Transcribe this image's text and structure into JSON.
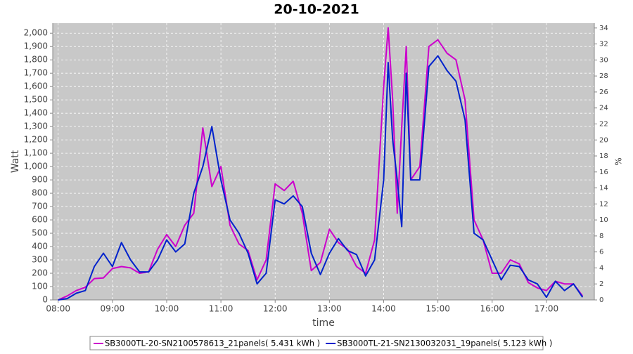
{
  "chart_data": {
    "type": "line",
    "title": "20-10-2021",
    "x_label": "time",
    "y_label": "Watt",
    "y2_label": "%",
    "x": [
      "08:00",
      "08:10",
      "08:20",
      "08:30",
      "08:40",
      "08:50",
      "09:00",
      "09:10",
      "09:20",
      "09:30",
      "09:40",
      "09:50",
      "10:00",
      "10:10",
      "10:20",
      "10:30",
      "10:40",
      "10:50",
      "11:00",
      "11:10",
      "11:20",
      "11:30",
      "11:40",
      "11:50",
      "12:00",
      "12:10",
      "12:20",
      "12:30",
      "12:40",
      "12:50",
      "13:00",
      "13:10",
      "13:20",
      "13:30",
      "13:40",
      "13:50",
      "14:00",
      "14:05",
      "14:10",
      "14:15",
      "14:20",
      "14:25",
      "14:30",
      "14:40",
      "14:50",
      "15:00",
      "15:10",
      "15:20",
      "15:30",
      "15:40",
      "15:50",
      "16:00",
      "16:10",
      "16:20",
      "16:30",
      "16:40",
      "16:50",
      "17:00",
      "17:10",
      "17:20",
      "17:30",
      "17:40"
    ],
    "series": [
      {
        "name": "SB3000TL-20-SN2100578613_21panels( 5.431 kWh )",
        "color": "#cc00cc",
        "values": [
          0,
          30,
          70,
          95,
          160,
          165,
          235,
          250,
          240,
          200,
          210,
          380,
          490,
          400,
          560,
          650,
          1290,
          850,
          1000,
          560,
          420,
          370,
          150,
          300,
          870,
          820,
          890,
          650,
          220,
          280,
          530,
          430,
          380,
          250,
          200,
          450,
          1600,
          2040,
          1500,
          650,
          1300,
          1900,
          900,
          1000,
          1900,
          1950,
          1850,
          1800,
          1500,
          600,
          450,
          200,
          200,
          300,
          270,
          130,
          90,
          70,
          140,
          120,
          120,
          30
        ]
      },
      {
        "name": "SB3000TL-21-SN2130032031_19panels( 5.123 kWh )",
        "color": "#0022cc",
        "values": [
          0,
          10,
          50,
          70,
          250,
          350,
          250,
          430,
          300,
          210,
          210,
          300,
          450,
          360,
          420,
          800,
          1000,
          1300,
          900,
          600,
          500,
          350,
          120,
          200,
          750,
          720,
          780,
          700,
          350,
          190,
          350,
          460,
          370,
          340,
          180,
          300,
          900,
          1780,
          1200,
          900,
          550,
          1700,
          900,
          900,
          1750,
          1830,
          1720,
          1640,
          1350,
          500,
          450,
          300,
          150,
          260,
          250,
          150,
          120,
          20,
          140,
          70,
          120,
          20
        ]
      }
    ],
    "xlim": [
      "07:54",
      "17:53"
    ],
    "xticks": [
      "08:00",
      "09:00",
      "10:00",
      "11:00",
      "12:00",
      "13:00",
      "14:00",
      "15:00",
      "16:00",
      "17:00"
    ],
    "ylim": [
      0,
      2075
    ],
    "yticks": [
      0,
      100,
      200,
      300,
      400,
      500,
      600,
      700,
      800,
      900,
      {
        "value": 1000,
        "label": "1,000"
      },
      {
        "value": 1100,
        "label": "1,100"
      },
      {
        "value": 1200,
        "label": "1,200"
      },
      {
        "value": 1300,
        "label": "1,300"
      },
      {
        "value": 1400,
        "label": "1,400"
      },
      {
        "value": 1500,
        "label": "1,500"
      },
      {
        "value": 1600,
        "label": "1,600"
      },
      {
        "value": 1700,
        "label": "1,700"
      },
      {
        "value": 1800,
        "label": "1,800"
      },
      {
        "value": 1900,
        "label": "1,900"
      },
      {
        "value": 2000,
        "label": "2,000"
      }
    ],
    "y2lim": [
      0,
      34.6
    ],
    "y2ticks": [
      0,
      2,
      4,
      6,
      8,
      10,
      12,
      14,
      16,
      18,
      20,
      22,
      24,
      26,
      28,
      30,
      32,
      34
    ],
    "grid": true,
    "legend": "bottom"
  }
}
